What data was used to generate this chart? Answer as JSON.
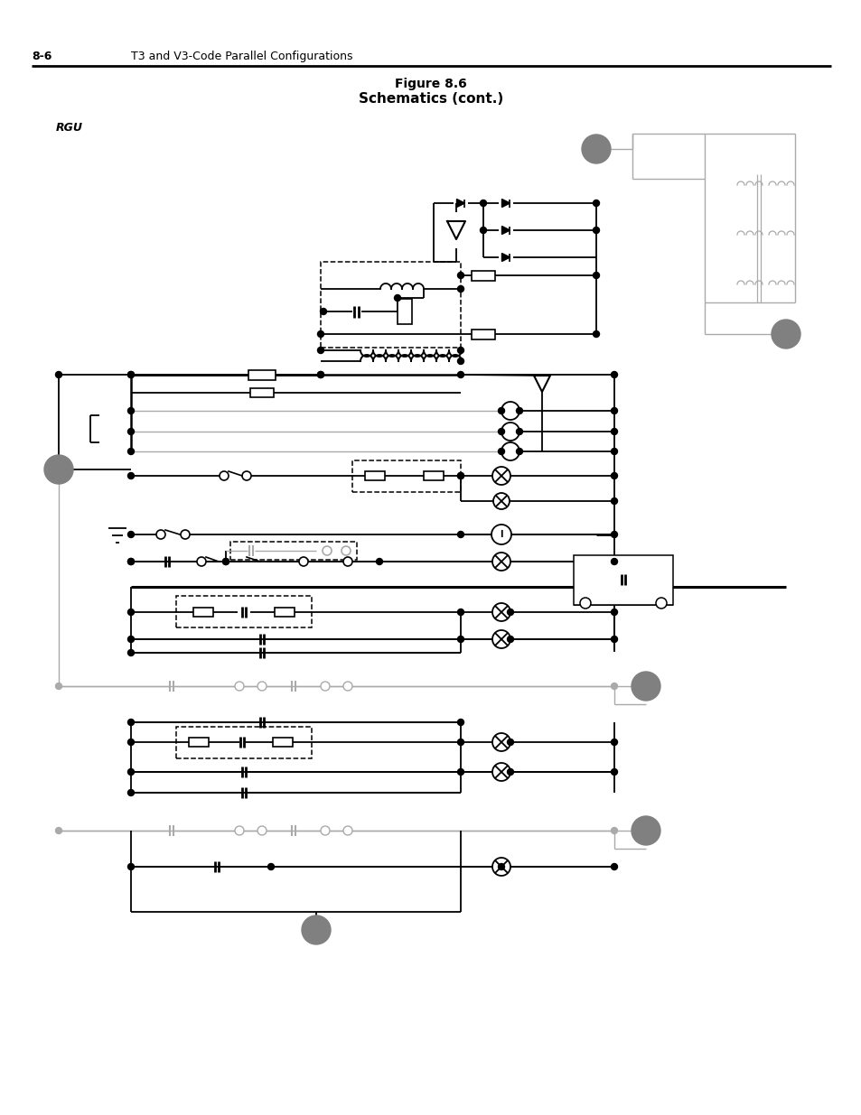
{
  "title_line1": "Figure 8.6",
  "title_line2": "Schematics (cont.)",
  "header_left": "8-6",
  "header_right": "T3 and V3-Code Parallel Configurations",
  "rgu_label": "RGU",
  "bg_color": "#ffffff",
  "line_color": "#000000",
  "gray_color": "#aaaaaa",
  "circle_fill": "#808080"
}
